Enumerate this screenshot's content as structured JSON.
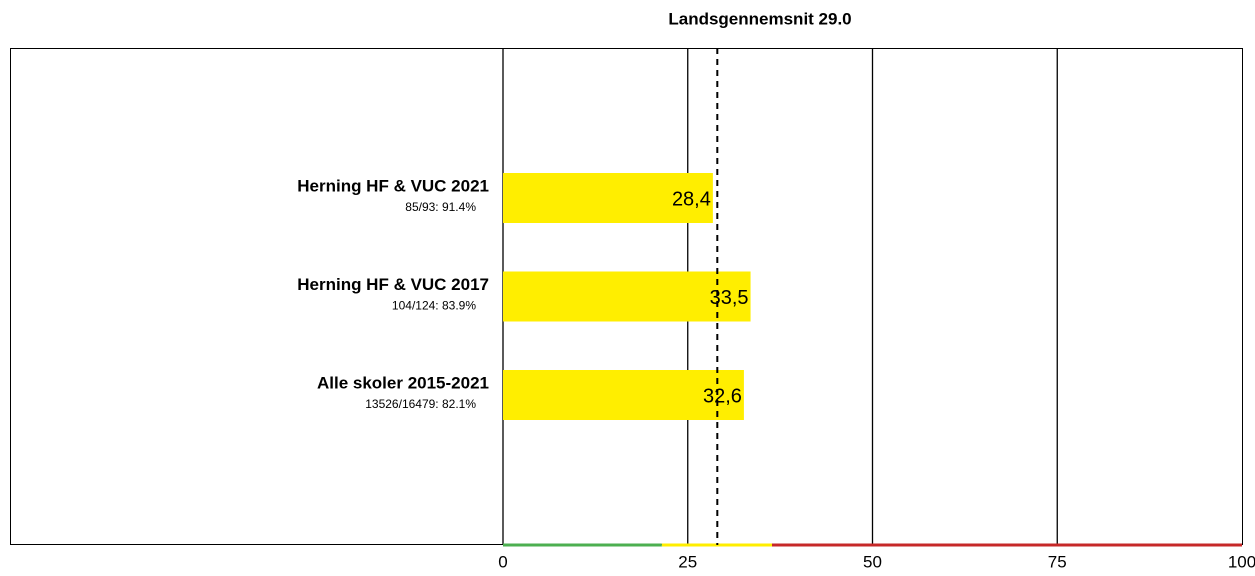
{
  "chart_data": {
    "type": "bar",
    "orientation": "horizontal",
    "title": "Landsgennemsnit 29.0",
    "categories": [
      "Herning HF & VUC 2021",
      "Herning HF & VUC 2017",
      "Alle skoler 2015-2021"
    ],
    "sublabels": [
      "85/93: 91.4%",
      "104/124: 83.9%",
      "13526/16479: 82.1%"
    ],
    "values": [
      28.4,
      33.5,
      32.6
    ],
    "value_labels": [
      "28,4",
      "33,5",
      "32,6"
    ],
    "color": "#ffee00",
    "reference": 29.0,
    "xlim": [
      0,
      100
    ],
    "xticks": [
      0,
      25,
      50,
      75,
      100
    ],
    "grid": true,
    "bands": [
      {
        "from": 0,
        "to": 21.5,
        "color": "#4caf50"
      },
      {
        "from": 21.5,
        "to": 36.4,
        "color": "#ffee00"
      },
      {
        "from": 36.4,
        "to": 100,
        "color": "#c62828"
      }
    ]
  }
}
